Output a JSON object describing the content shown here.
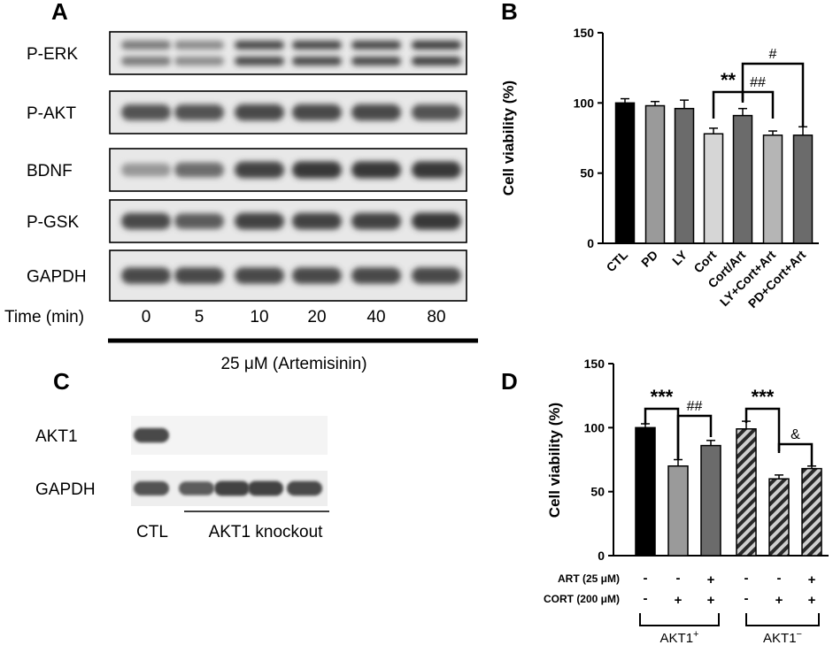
{
  "panel_a": {
    "letter": "A",
    "rows": [
      {
        "label": "P-ERK",
        "intensity": [
          0.55,
          0.45,
          0.85,
          0.85,
          0.85,
          0.9
        ]
      },
      {
        "label": "P-AKT",
        "intensity": [
          0.75,
          0.75,
          0.8,
          0.8,
          0.8,
          0.75
        ]
      },
      {
        "label": "BDNF",
        "intensity": [
          0.35,
          0.6,
          0.85,
          0.9,
          0.9,
          0.9
        ]
      },
      {
        "label": "P-GSK",
        "intensity": [
          0.8,
          0.7,
          0.85,
          0.85,
          0.85,
          0.9
        ]
      },
      {
        "label": "GAPDH",
        "intensity": [
          0.8,
          0.8,
          0.8,
          0.8,
          0.8,
          0.8
        ]
      }
    ],
    "time_label": "Time (min)",
    "times": [
      "0",
      "5",
      "10",
      "20",
      "40",
      "80"
    ],
    "treatment": "25 μM  (Artemisinin)"
  },
  "panel_c": {
    "letter": "C",
    "rows": [
      {
        "label": "AKT1",
        "intensity": [
          0.8,
          0,
          0,
          0,
          0
        ]
      },
      {
        "label": "GAPDH",
        "intensity": [
          0.75,
          0.7,
          0.85,
          0.85,
          0.8
        ]
      }
    ],
    "ctl_label": "CTL",
    "knockout_label": "AKT1 knockout"
  },
  "chart_data": [
    {
      "panel": "B",
      "type": "bar",
      "ylabel": "Cell viability (%)",
      "ylim": [
        0,
        150
      ],
      "yticks": [
        0,
        50,
        100,
        150
      ],
      "categories": [
        "CTL",
        "PD",
        "LY",
        "Cort",
        "Cort/Art",
        "LY+Cort+Art",
        "PD+Cort+Art"
      ],
      "values": [
        100,
        98,
        96,
        78,
        91,
        77,
        77
      ],
      "errors": [
        3,
        3,
        6,
        4,
        5,
        3,
        6
      ],
      "colors": [
        "#000000",
        "#9a9a9a",
        "#6b6b6b",
        "#d6d6d6",
        "#6b6b6b",
        "#b5b5b5",
        "#6b6b6b"
      ],
      "annotations": [
        {
          "text": "**",
          "from": 3,
          "to": 4
        },
        {
          "text": "##",
          "from": 4,
          "to": 5
        },
        {
          "text": "#",
          "from": 4,
          "to": 6
        }
      ]
    },
    {
      "panel": "D",
      "type": "bar",
      "ylabel": "Cell viability (%)",
      "ylim": [
        0,
        150
      ],
      "yticks": [
        0,
        50,
        100,
        150
      ],
      "values": [
        100,
        70,
        86,
        99,
        60,
        68
      ],
      "errors": [
        3,
        5,
        4,
        6,
        3,
        2
      ],
      "colors": [
        "#000000",
        "#9a9a9a",
        "#6b6b6b",
        "#9a9a9a",
        "#555555",
        "#9a9a9a"
      ],
      "hatched": [
        false,
        false,
        false,
        true,
        true,
        true
      ],
      "conditions": [
        {
          "label": "ART (25 μM)",
          "signs": [
            "-",
            "-",
            "+",
            "-",
            "-",
            "+"
          ]
        },
        {
          "label": "CORT (200 μM)",
          "signs": [
            "-",
            "+",
            "+",
            "-",
            "+",
            "+"
          ]
        }
      ],
      "groups": [
        {
          "label": "AKT1",
          "sup": "+"
        },
        {
          "label": "AKT1",
          "sup": "−"
        }
      ],
      "annotations": [
        {
          "text": "***",
          "from": 0,
          "to": 1
        },
        {
          "text": "##",
          "from": 1,
          "to": 2
        },
        {
          "text": "***",
          "from": 3,
          "to": 4
        },
        {
          "text": "&",
          "from": 4,
          "to": 5
        }
      ]
    }
  ]
}
